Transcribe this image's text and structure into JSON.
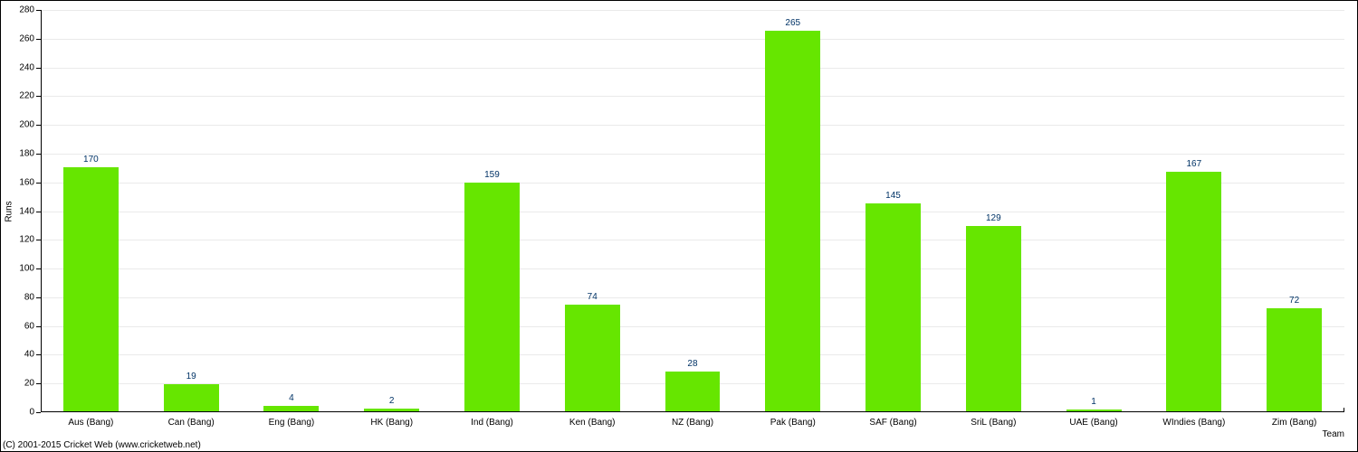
{
  "chart": {
    "type": "bar",
    "background_color": "#ffffff",
    "border_color": "#000000",
    "grid_color": "#eaeaea",
    "bar_color": "#66e600",
    "bar_label_color": "#003366",
    "axis_text_color": "#000000",
    "tick_fontsize": 10,
    "bar_label_fontsize": 10,
    "x_label": "Team",
    "y_label": "Runs",
    "ylim": [
      0,
      280
    ],
    "ytick_step": 20,
    "bar_width_ratio": 0.55,
    "categories": [
      "Aus (Bang)",
      "Can (Bang)",
      "Eng (Bang)",
      "HK (Bang)",
      "Ind (Bang)",
      "Ken (Bang)",
      "NZ (Bang)",
      "Pak (Bang)",
      "SAF (Bang)",
      "SriL (Bang)",
      "UAE (Bang)",
      "WIndies (Bang)",
      "Zim (Bang)"
    ],
    "values": [
      170,
      19,
      4,
      2,
      159,
      74,
      28,
      265,
      145,
      129,
      1,
      167,
      72
    ]
  },
  "copyright": "(C) 2001-2015 Cricket Web (www.cricketweb.net)"
}
